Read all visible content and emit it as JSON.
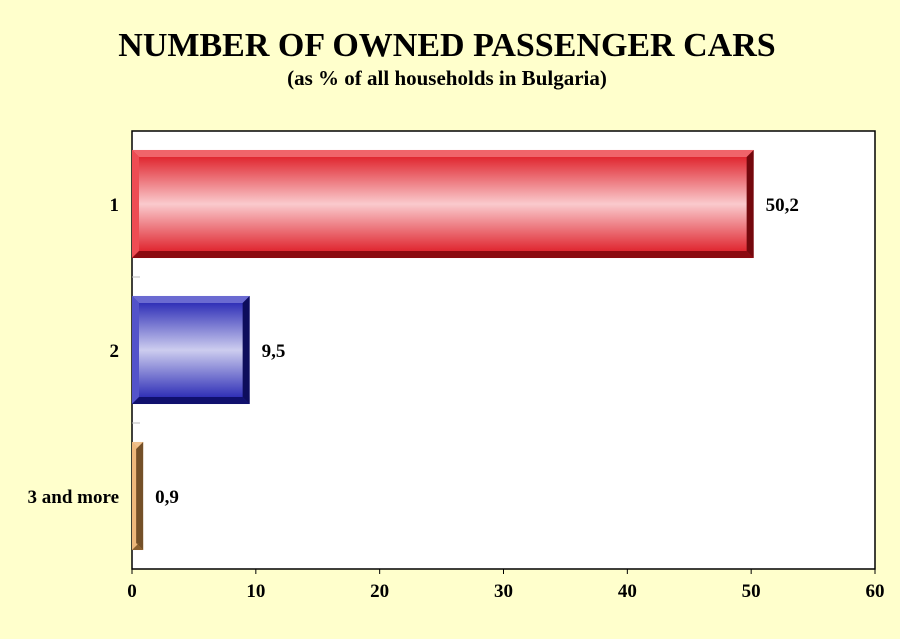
{
  "chart_data": {
    "type": "bar",
    "orientation": "horizontal",
    "title": "NUMBER OF OWNED PASSENGER CARS",
    "subtitle": "(as % of all households in Bulgaria)",
    "categories": [
      "1",
      "2",
      "3 and more"
    ],
    "values": [
      50.2,
      9.5,
      0.9
    ],
    "value_labels": [
      "50,2",
      "9,5",
      "0,9"
    ],
    "bar_colors": [
      "#e8101a",
      "#1a1ab8",
      "#e8a050"
    ],
    "xlim": [
      0,
      60
    ],
    "xticks": [
      0,
      10,
      20,
      30,
      40,
      50,
      60
    ],
    "grid": false,
    "legend": "none"
  }
}
